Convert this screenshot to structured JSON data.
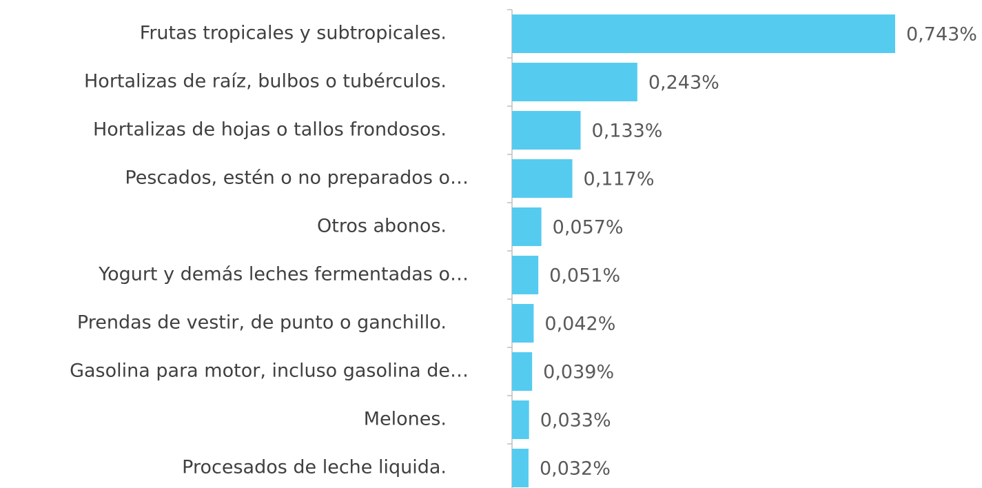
{
  "chart_data": {
    "type": "barh",
    "categories": [
      "Frutas tropicales y subtropicales.",
      "Hortalizas de raíz, bulbos o tubérculos.",
      "Hortalizas de hojas o tallos frondosos.",
      "Pescados, estén o no preparados o…",
      "Otros abonos.",
      "Yogurt y demás leches fermentadas o…",
      "Prendas de vestir, de punto o ganchillo.",
      "Gasolina para motor, incluso gasolina de…",
      "Melones.",
      "Procesados de leche liquida."
    ],
    "values": [
      0.743,
      0.243,
      0.133,
      0.117,
      0.057,
      0.051,
      0.042,
      0.039,
      0.033,
      0.032
    ],
    "value_labels": [
      "0,743%",
      "0,243%",
      "0,133%",
      "0,117%",
      "0,057%",
      "0,051%",
      "0,042%",
      "0,039%",
      "0,033%",
      "0,032%"
    ],
    "color": "#56cbf0"
  }
}
